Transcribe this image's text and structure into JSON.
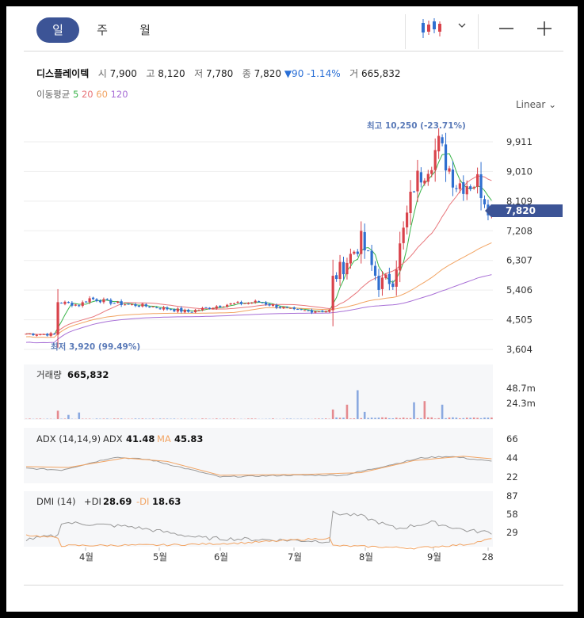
{
  "tabs": {
    "day": "일",
    "week": "주",
    "month": "월"
  },
  "info": {
    "name": "디스플레이텍",
    "open_label": "시",
    "open": "7,900",
    "high_label": "고",
    "high": "8,120",
    "low_label": "저",
    "low": "7,780",
    "close_label": "종",
    "close": "7,820",
    "change": "▼90",
    "change_pct": "-1.14%",
    "vol_label": "거",
    "volume": "665,832"
  },
  "ma": {
    "label": "이동평균",
    "p5": "5",
    "p20": "20",
    "p60": "60",
    "p120": "120"
  },
  "scale_label": "Linear",
  "colors": {
    "up": "#d9434b",
    "down": "#2f6fd0",
    "ma5": "#3ab44a",
    "ma20": "#e8757a",
    "ma60": "#f2a463",
    "ma120": "#a86fd6",
    "accent": "#3c5496"
  },
  "chart_data": {
    "type": "candlestick",
    "price_axis": {
      "ticks": [
        "9,911",
        "9,010",
        "8,109",
        "7,208",
        "6,307",
        "5,406",
        "4,505",
        "3,604"
      ],
      "current": "7,820"
    },
    "max_label": "최고 10,250 (-23.71%)",
    "min_label": "최저 3,920 (99.49%)",
    "x_labels": [
      "4월",
      "5월",
      "6월",
      "7월",
      "8월",
      "9월",
      "28"
    ],
    "anchors": [
      [
        0,
        4080
      ],
      [
        8,
        4060
      ],
      [
        9,
        5050
      ],
      [
        15,
        4950
      ],
      [
        18,
        5150
      ],
      [
        26,
        5000
      ],
      [
        36,
        4900
      ],
      [
        46,
        4750
      ],
      [
        56,
        4960
      ],
      [
        66,
        5050
      ],
      [
        76,
        4780
      ],
      [
        86,
        4780
      ],
      [
        87,
        5720
      ],
      [
        95,
        6900
      ],
      [
        100,
        5600
      ],
      [
        104,
        5750
      ],
      [
        110,
        8600
      ],
      [
        117,
        9800
      ],
      [
        122,
        8650
      ],
      [
        128,
        8700
      ],
      [
        132,
        7820
      ]
    ],
    "volume": {
      "label": "거래량",
      "value": "665,832",
      "ticks": [
        "48.7m",
        "24.3m"
      ],
      "spikes": [
        [
          9,
          14
        ],
        [
          12,
          7
        ],
        [
          15,
          11
        ],
        [
          87,
          16
        ],
        [
          91,
          24
        ],
        [
          94,
          48
        ],
        [
          96,
          12
        ],
        [
          110,
          28
        ],
        [
          113,
          30
        ],
        [
          118,
          24
        ]
      ]
    },
    "adx": {
      "label": "ADX (14,14,9)",
      "adx_label": "ADX",
      "adx_value": "41.48",
      "ma_label": "MA",
      "ma_value": "45.83",
      "ticks": [
        "66",
        "44",
        "22"
      ]
    },
    "dmi": {
      "label": "DMI (14)",
      "plus_label": "+DI",
      "plus_value": "28.69",
      "minus_label": "-DI",
      "minus_value": "18.63",
      "ticks": [
        "87",
        "58",
        "29"
      ]
    }
  }
}
